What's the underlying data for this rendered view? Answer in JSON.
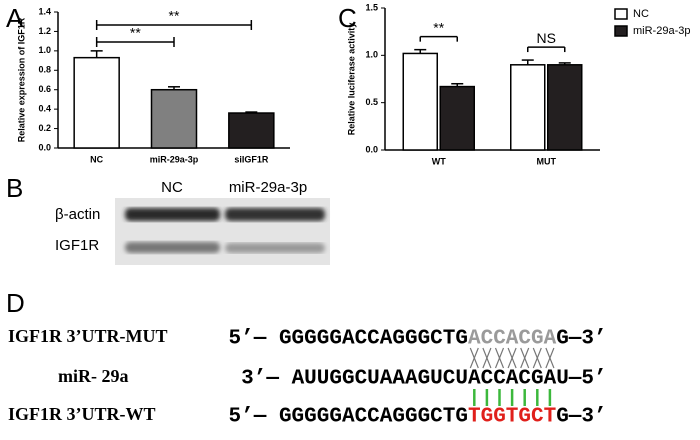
{
  "panels": {
    "a": "A",
    "b": "B",
    "c": "C",
    "d": "D"
  },
  "chart_data": [
    {
      "type": "bar",
      "ylabel": "Relative expression of IGF1R",
      "categories": [
        "NC",
        "miR-29a-3p",
        "siIGF1R"
      ],
      "values": [
        0.93,
        0.6,
        0.36
      ],
      "errors": [
        0.07,
        0.03,
        0.01
      ],
      "colors": [
        "#ffffff",
        "#808080",
        "#231f20"
      ],
      "ylim": [
        0,
        1.4
      ],
      "yticks": [
        {
          "value": 0,
          "label": "0.0"
        },
        {
          "value": 0.2,
          "label": "0.2"
        },
        {
          "value": 0.4,
          "label": "0.4"
        },
        {
          "value": 0.6,
          "label": "0.6"
        },
        {
          "value": 0.8,
          "label": "0.8"
        },
        {
          "value": 1,
          "label": "1.0"
        },
        {
          "value": 1.2,
          "label": "1.2"
        },
        {
          "value": 1.4,
          "label": "1.4"
        }
      ],
      "annotations": [
        {
          "between": [
            "NC",
            "miR-29a-3p"
          ],
          "label": "**"
        },
        {
          "between": [
            "NC",
            "siIGF1R"
          ],
          "label": "**"
        }
      ]
    },
    {
      "type": "grouped-bar",
      "ylabel": "Relative luciferase activity",
      "categories": [
        "WT",
        "MUT"
      ],
      "series": [
        {
          "name": "NC",
          "color": "#ffffff",
          "values": [
            1.02,
            0.9
          ],
          "errors": [
            0.04,
            0.05
          ]
        },
        {
          "name": "miR-29a-3p",
          "color": "#231f20",
          "values": [
            0.67,
            0.9
          ],
          "errors": [
            0.03,
            0.02
          ]
        }
      ],
      "ylim": [
        0,
        1.5
      ],
      "yticks": [
        {
          "value": 0,
          "label": "0.0"
        },
        {
          "value": 0.5,
          "label": "0.5"
        },
        {
          "value": 1,
          "label": "1.0"
        },
        {
          "value": 1.5,
          "label": "1.5"
        }
      ],
      "annotations": [
        {
          "category": "WT",
          "label": "**"
        },
        {
          "category": "MUT",
          "label": "NS"
        }
      ]
    }
  ],
  "blot": {
    "lanes": [
      "NC",
      "miR-29a-3p"
    ],
    "rows": [
      "β-actin",
      "IGF1R"
    ]
  },
  "sequences": [
    {
      "name": "IGF1R  3’UTR-MUT",
      "lead": "5’— GGGGGACCAGGGCTG",
      "site": "ACCACGA",
      "tail": "G—3’",
      "site_color": "#9a9a9a"
    },
    {
      "name": "miR- 29a",
      "lead": "3’— AUUGGCUAAAGUCU",
      "site": "ACCACGA",
      "tail": "U—5’",
      "site_color": "#000000"
    },
    {
      "name": "IGF1R 3’UTR-WT",
      "lead": "5’— GGGGGACCAGGGCTG",
      "site": "TGGTGCT",
      "tail": "G—3’",
      "site_color": "#e0201b"
    }
  ]
}
